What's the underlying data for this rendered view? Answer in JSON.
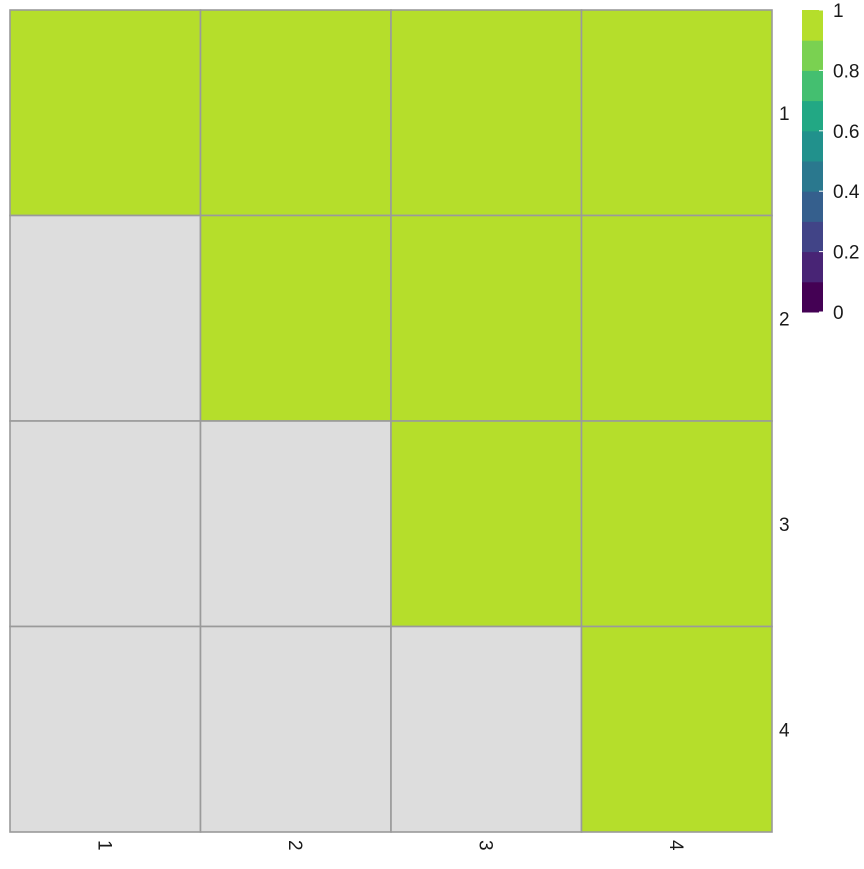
{
  "chart_data": {
    "type": "heatmap",
    "title": "",
    "xlabel": "",
    "ylabel": "",
    "x_labels": [
      "1",
      "2",
      "3",
      "4"
    ],
    "y_labels": [
      "1",
      "2",
      "3",
      "4"
    ],
    "values": [
      [
        1,
        1,
        1,
        1
      ],
      [
        null,
        1,
        1,
        1
      ],
      [
        null,
        null,
        1,
        1
      ],
      [
        null,
        null,
        null,
        1
      ]
    ],
    "legend": {
      "placement": "top-right",
      "range": [
        0,
        1
      ],
      "ticks": [
        "0",
        "0.2",
        "0.4",
        "0.6",
        "0.8",
        "1"
      ],
      "bins": [
        "#440154",
        "#482475",
        "#414487",
        "#355f8d",
        "#2a788e",
        "#21918c",
        "#22a884",
        "#44bf70",
        "#7ad151",
        "#b5de2b"
      ]
    },
    "colors": {
      "max_value": "#b5de2b",
      "missing": "#dddddd",
      "cell_border": "#9a9a9a"
    }
  }
}
